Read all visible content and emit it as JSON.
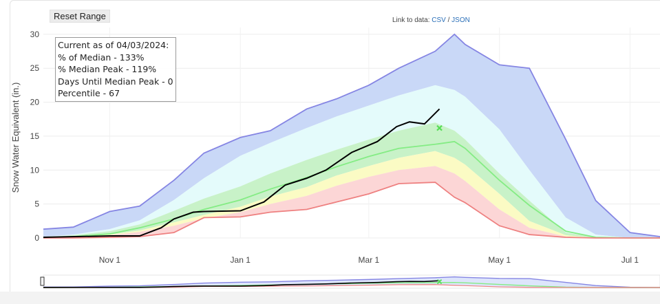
{
  "controls": {
    "reset_label": "Reset Range",
    "link_prefix": "Link to data:",
    "csv_label": "CSV",
    "separator": "/",
    "json_label": "JSON"
  },
  "info_box": {
    "line1": "Current as of 04/03/2024:",
    "line2": "% of Median - 133%",
    "line3": "% Median Peak - 119%",
    "line4": "Days Until Median Peak - 0",
    "line5": "Percentile - 67"
  },
  "colors": {
    "max_band": "#c9d8f7",
    "p90_band": "#e4fbfb",
    "p70_band": "#c8f2c8",
    "p50_band": "#fbfbc4",
    "p30_band": "#fcd6d6",
    "max_line": "#8585e3",
    "median_line": "#84ec84",
    "min_line": "#ee8080",
    "current_line": "#000000",
    "peak_marker": "#55dd55"
  },
  "chart_data": {
    "type": "area",
    "title": "",
    "xlabel": "",
    "ylabel": "Snow Water Equivalent (in.)",
    "x_tick_labels": [
      "Nov 1",
      "Jan 1",
      "Mar 1",
      "May 1",
      "Jul 1"
    ],
    "ylim": [
      0,
      31
    ],
    "y_ticks": [
      0,
      5,
      10,
      15,
      20,
      25,
      30
    ],
    "grid": true,
    "legend": "none",
    "dates": [
      "2023-10-01",
      "2023-10-15",
      "2023-11-01",
      "2023-11-15",
      "2023-12-01",
      "2023-12-15",
      "2024-01-01",
      "2024-01-15",
      "2024-02-01",
      "2024-02-15",
      "2024-03-01",
      "2024-03-15",
      "2024-04-01",
      "2024-04-10",
      "2024-04-15",
      "2024-05-01",
      "2024-05-15",
      "2024-06-01",
      "2024-06-15",
      "2024-07-01",
      "2024-07-15"
    ],
    "series": [
      {
        "key": "max",
        "values": [
          1.3,
          1.6,
          3.9,
          4.7,
          8.5,
          12.5,
          14.8,
          15.8,
          19.0,
          20.5,
          22.5,
          25.0,
          27.5,
          30.0,
          28.5,
          25.5,
          25.0,
          14.5,
          5.5,
          0.8,
          0.2
        ]
      },
      {
        "key": "p90",
        "values": [
          0.2,
          0.5,
          1.3,
          2.6,
          5.6,
          8.8,
          12.1,
          14.0,
          16.2,
          17.9,
          19.5,
          21.0,
          22.5,
          21.8,
          20.8,
          16.0,
          10.0,
          3.0,
          0.5,
          0.0,
          0.0
        ]
      },
      {
        "key": "p70",
        "values": [
          0.1,
          0.4,
          1.0,
          2.0,
          4.0,
          5.8,
          7.6,
          9.5,
          11.5,
          13.0,
          14.5,
          15.8,
          17.0,
          15.8,
          14.5,
          9.5,
          5.5,
          0.8,
          0.1,
          0.0,
          0.0
        ]
      },
      {
        "key": "median",
        "values": [
          0.0,
          0.2,
          0.6,
          1.5,
          2.8,
          4.2,
          5.6,
          7.2,
          8.9,
          10.5,
          12.0,
          13.2,
          13.8,
          14.2,
          13.2,
          8.5,
          4.8,
          1.0,
          0.1,
          0.0,
          0.0
        ]
      },
      {
        "key": "p50",
        "values": [
          0.0,
          0.2,
          0.5,
          1.1,
          2.3,
          3.4,
          4.6,
          6.1,
          7.5,
          9.2,
          10.6,
          11.8,
          12.8,
          11.8,
          10.8,
          6.5,
          2.5,
          0.4,
          0.0,
          0.0,
          0.0
        ]
      },
      {
        "key": "p30",
        "values": [
          0.0,
          0.1,
          0.4,
          0.9,
          1.8,
          2.9,
          3.8,
          5.0,
          6.2,
          7.7,
          9.0,
          10.0,
          10.6,
          9.5,
          8.4,
          4.2,
          1.5,
          0.2,
          0.0,
          0.0,
          0.0
        ]
      },
      {
        "key": "min",
        "values": [
          0.0,
          0.0,
          0.1,
          0.2,
          0.8,
          3.0,
          3.1,
          3.8,
          4.2,
          5.3,
          6.5,
          8.0,
          8.2,
          6.0,
          5.2,
          1.8,
          0.5,
          0.1,
          0.0,
          0.0,
          0.0
        ]
      }
    ],
    "current": {
      "name": "Current",
      "dates": [
        "2023-10-01",
        "2023-11-01",
        "2023-11-15",
        "2023-11-25",
        "2023-12-01",
        "2023-12-10",
        "2023-12-15",
        "2024-01-01",
        "2024-01-12",
        "2024-01-22",
        "2024-02-01",
        "2024-02-10",
        "2024-02-22",
        "2024-03-05",
        "2024-03-14",
        "2024-03-20",
        "2024-03-27",
        "2024-04-03"
      ],
      "values": [
        0.1,
        0.3,
        0.3,
        1.5,
        2.8,
        3.8,
        3.9,
        4.0,
        5.3,
        7.8,
        8.8,
        10.0,
        12.6,
        14.2,
        16.4,
        17.1,
        16.8,
        19.0
      ]
    },
    "peak_marker": {
      "date": "2024-04-03",
      "value": 16.2
    },
    "navigator": {
      "visible": true
    }
  }
}
